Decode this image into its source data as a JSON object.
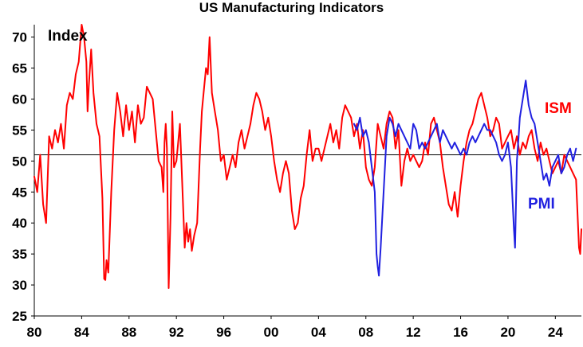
{
  "chart_data": {
    "type": "line",
    "title": "US Manufacturing Indicators",
    "ylabel": "Index",
    "xlabel": "",
    "ylim": [
      25,
      72
    ],
    "yticks": [
      25,
      30,
      35,
      40,
      45,
      50,
      55,
      60,
      65,
      70
    ],
    "xlim": [
      1980,
      2026.2
    ],
    "xticks": [
      {
        "x": 1980,
        "label": "80"
      },
      {
        "x": 1984,
        "label": "84"
      },
      {
        "x": 1988,
        "label": "88"
      },
      {
        "x": 1992,
        "label": "92"
      },
      {
        "x": 1996,
        "label": "96"
      },
      {
        "x": 2000,
        "label": "00"
      },
      {
        "x": 2004,
        "label": "04"
      },
      {
        "x": 2008,
        "label": "08"
      },
      {
        "x": 2012,
        "label": "12"
      },
      {
        "x": 2016,
        "label": "16"
      },
      {
        "x": 2020,
        "label": "20"
      },
      {
        "x": 2024,
        "label": "24"
      }
    ],
    "reference_line": 51,
    "grid": false,
    "series": [
      {
        "name": "ISM",
        "color": "#ff0000",
        "points": [
          [
            1980.0,
            47.5
          ],
          [
            1980.25,
            45
          ],
          [
            1980.5,
            51
          ],
          [
            1980.75,
            43
          ],
          [
            1981.0,
            40
          ],
          [
            1981.25,
            54
          ],
          [
            1981.5,
            52
          ],
          [
            1981.75,
            55
          ],
          [
            1982.0,
            53
          ],
          [
            1982.25,
            56
          ],
          [
            1982.5,
            52
          ],
          [
            1982.75,
            59
          ],
          [
            1983.0,
            61
          ],
          [
            1983.25,
            60
          ],
          [
            1983.5,
            64
          ],
          [
            1983.75,
            66
          ],
          [
            1984.0,
            72
          ],
          [
            1984.2,
            70
          ],
          [
            1984.4,
            66
          ],
          [
            1984.5,
            58
          ],
          [
            1984.6,
            62
          ],
          [
            1984.8,
            68
          ],
          [
            1985.0,
            61
          ],
          [
            1985.25,
            56
          ],
          [
            1985.5,
            54
          ],
          [
            1985.75,
            44
          ],
          [
            1985.9,
            31
          ],
          [
            1986.0,
            30.8
          ],
          [
            1986.1,
            34
          ],
          [
            1986.25,
            32
          ],
          [
            1986.5,
            45
          ],
          [
            1986.75,
            55
          ],
          [
            1987.0,
            61
          ],
          [
            1987.25,
            58
          ],
          [
            1987.5,
            54
          ],
          [
            1987.75,
            59
          ],
          [
            1988.0,
            55
          ],
          [
            1988.25,
            58
          ],
          [
            1988.5,
            53
          ],
          [
            1988.75,
            59
          ],
          [
            1989.0,
            56
          ],
          [
            1989.25,
            57
          ],
          [
            1989.5,
            62
          ],
          [
            1989.75,
            61
          ],
          [
            1990.0,
            60
          ],
          [
            1990.25,
            55
          ],
          [
            1990.5,
            50
          ],
          [
            1990.75,
            49
          ],
          [
            1990.9,
            45
          ],
          [
            1991.0,
            53
          ],
          [
            1991.1,
            56
          ],
          [
            1991.2,
            52
          ],
          [
            1991.35,
            29.5
          ],
          [
            1991.5,
            41
          ],
          [
            1991.65,
            58
          ],
          [
            1991.8,
            49
          ],
          [
            1992.0,
            50
          ],
          [
            1992.15,
            53
          ],
          [
            1992.3,
            56
          ],
          [
            1992.5,
            46
          ],
          [
            1992.7,
            36
          ],
          [
            1992.85,
            40
          ],
          [
            1993.0,
            37
          ],
          [
            1993.15,
            39
          ],
          [
            1993.3,
            35.5
          ],
          [
            1993.5,
            38
          ],
          [
            1993.75,
            40
          ],
          [
            1994.0,
            52
          ],
          [
            1994.15,
            58
          ],
          [
            1994.3,
            61
          ],
          [
            1994.5,
            65
          ],
          [
            1994.65,
            64
          ],
          [
            1994.8,
            70
          ],
          [
            1995.0,
            61
          ],
          [
            1995.25,
            58
          ],
          [
            1995.5,
            55
          ],
          [
            1995.75,
            50
          ],
          [
            1996.0,
            51
          ],
          [
            1996.25,
            47
          ],
          [
            1996.5,
            49
          ],
          [
            1996.75,
            51
          ],
          [
            1997.0,
            49
          ],
          [
            1997.25,
            53
          ],
          [
            1997.5,
            55
          ],
          [
            1997.75,
            52
          ],
          [
            1998.0,
            54
          ],
          [
            1998.25,
            56
          ],
          [
            1998.5,
            59
          ],
          [
            1998.75,
            61
          ],
          [
            1999.0,
            60
          ],
          [
            1999.25,
            58
          ],
          [
            1999.5,
            55
          ],
          [
            1999.75,
            57
          ],
          [
            2000.0,
            54
          ],
          [
            2000.25,
            50
          ],
          [
            2000.5,
            47
          ],
          [
            2000.75,
            45
          ],
          [
            2001.0,
            48
          ],
          [
            2001.25,
            50
          ],
          [
            2001.5,
            48
          ],
          [
            2001.75,
            42
          ],
          [
            2002.0,
            39
          ],
          [
            2002.25,
            40
          ],
          [
            2002.5,
            44
          ],
          [
            2002.75,
            46
          ],
          [
            2003.0,
            51
          ],
          [
            2003.25,
            55
          ],
          [
            2003.5,
            50
          ],
          [
            2003.75,
            52
          ],
          [
            2004.0,
            52
          ],
          [
            2004.25,
            50
          ],
          [
            2004.5,
            52
          ],
          [
            2004.75,
            54
          ],
          [
            2005.0,
            56
          ],
          [
            2005.25,
            53
          ],
          [
            2005.5,
            55
          ],
          [
            2005.75,
            52
          ],
          [
            2006.0,
            57
          ],
          [
            2006.25,
            59
          ],
          [
            2006.5,
            58
          ],
          [
            2006.75,
            57
          ],
          [
            2007.0,
            54
          ],
          [
            2007.25,
            56
          ],
          [
            2007.5,
            52
          ],
          [
            2007.75,
            55
          ],
          [
            2008.0,
            49
          ],
          [
            2008.25,
            47
          ],
          [
            2008.5,
            46
          ],
          [
            2008.75,
            49
          ],
          [
            2009.0,
            56
          ],
          [
            2009.25,
            54
          ],
          [
            2009.5,
            52
          ],
          [
            2009.75,
            56
          ],
          [
            2010.0,
            58
          ],
          [
            2010.25,
            57
          ],
          [
            2010.5,
            52
          ],
          [
            2010.75,
            55
          ],
          [
            2011.0,
            46
          ],
          [
            2011.25,
            50
          ],
          [
            2011.5,
            52
          ],
          [
            2011.75,
            50
          ],
          [
            2012.0,
            51
          ],
          [
            2012.25,
            50
          ],
          [
            2012.5,
            49
          ],
          [
            2012.75,
            50
          ],
          [
            2013.0,
            53
          ],
          [
            2013.25,
            51
          ],
          [
            2013.5,
            56
          ],
          [
            2013.75,
            57
          ],
          [
            2014.0,
            55
          ],
          [
            2014.25,
            53
          ],
          [
            2014.5,
            49
          ],
          [
            2014.75,
            46
          ],
          [
            2015.0,
            43
          ],
          [
            2015.25,
            42
          ],
          [
            2015.5,
            45
          ],
          [
            2015.75,
            41
          ],
          [
            2016.0,
            46
          ],
          [
            2016.25,
            50
          ],
          [
            2016.5,
            53
          ],
          [
            2016.75,
            55
          ],
          [
            2017.0,
            56
          ],
          [
            2017.25,
            58
          ],
          [
            2017.5,
            60
          ],
          [
            2017.75,
            61
          ],
          [
            2018.0,
            59
          ],
          [
            2018.25,
            57
          ],
          [
            2018.5,
            54
          ],
          [
            2018.75,
            55
          ],
          [
            2019.0,
            57
          ],
          [
            2019.25,
            56
          ],
          [
            2019.5,
            52
          ],
          [
            2019.75,
            53
          ],
          [
            2020.0,
            54
          ],
          [
            2020.25,
            55
          ],
          [
            2020.5,
            52
          ],
          [
            2020.75,
            54
          ],
          [
            2021.0,
            51
          ],
          [
            2021.25,
            53
          ],
          [
            2021.5,
            52
          ],
          [
            2021.75,
            54
          ],
          [
            2022.0,
            55
          ],
          [
            2022.25,
            52
          ],
          [
            2022.5,
            50
          ],
          [
            2022.75,
            53
          ],
          [
            2023.0,
            51
          ],
          [
            2023.25,
            52
          ],
          [
            2023.5,
            50
          ],
          [
            2023.75,
            48
          ],
          [
            2024.0,
            49
          ],
          [
            2024.25,
            50
          ],
          [
            2024.5,
            48
          ],
          [
            2024.75,
            51
          ],
          [
            2025.0,
            50
          ],
          [
            2025.25,
            49
          ],
          [
            2025.5,
            48
          ],
          [
            2025.75,
            47
          ],
          [
            2026.0,
            36
          ],
          [
            2026.1,
            35
          ],
          [
            2026.2,
            39
          ]
        ]
      },
      {
        "name": "PMI",
        "color": "#2020e0",
        "points": [
          [
            2007.0,
            56
          ],
          [
            2007.25,
            55
          ],
          [
            2007.5,
            57
          ],
          [
            2007.75,
            54
          ],
          [
            2008.0,
            55
          ],
          [
            2008.25,
            53
          ],
          [
            2008.5,
            49
          ],
          [
            2008.75,
            45
          ],
          [
            2008.9,
            35
          ],
          [
            2009.0,
            33
          ],
          [
            2009.1,
            31.5
          ],
          [
            2009.25,
            36
          ],
          [
            2009.5,
            45
          ],
          [
            2009.75,
            54
          ],
          [
            2010.0,
            57
          ],
          [
            2010.25,
            56
          ],
          [
            2010.5,
            54
          ],
          [
            2010.75,
            56
          ],
          [
            2011.0,
            55
          ],
          [
            2011.25,
            54
          ],
          [
            2011.5,
            53
          ],
          [
            2011.75,
            52
          ],
          [
            2012.0,
            56
          ],
          [
            2012.25,
            55
          ],
          [
            2012.5,
            52
          ],
          [
            2012.75,
            53
          ],
          [
            2013.0,
            52
          ],
          [
            2013.25,
            53
          ],
          [
            2013.5,
            54
          ],
          [
            2013.75,
            55
          ],
          [
            2014.0,
            56
          ],
          [
            2014.25,
            53
          ],
          [
            2014.5,
            55
          ],
          [
            2014.75,
            54
          ],
          [
            2015.0,
            53
          ],
          [
            2015.25,
            52
          ],
          [
            2015.5,
            53
          ],
          [
            2015.75,
            52
          ],
          [
            2016.0,
            51
          ],
          [
            2016.25,
            52
          ],
          [
            2016.5,
            51
          ],
          [
            2016.75,
            53
          ],
          [
            2017.0,
            54
          ],
          [
            2017.25,
            53
          ],
          [
            2017.5,
            54
          ],
          [
            2017.75,
            55
          ],
          [
            2018.0,
            56
          ],
          [
            2018.25,
            55
          ],
          [
            2018.5,
            55
          ],
          [
            2018.75,
            54
          ],
          [
            2019.0,
            53
          ],
          [
            2019.25,
            51
          ],
          [
            2019.5,
            50
          ],
          [
            2019.75,
            51
          ],
          [
            2020.0,
            53
          ],
          [
            2020.25,
            49
          ],
          [
            2020.5,
            39
          ],
          [
            2020.6,
            36
          ],
          [
            2020.75,
            50
          ],
          [
            2020.9,
            54
          ],
          [
            2021.0,
            57
          ],
          [
            2021.25,
            60
          ],
          [
            2021.5,
            63
          ],
          [
            2021.75,
            59
          ],
          [
            2022.0,
            57
          ],
          [
            2022.25,
            56
          ],
          [
            2022.5,
            53
          ],
          [
            2022.75,
            50
          ],
          [
            2023.0,
            47
          ],
          [
            2023.25,
            48
          ],
          [
            2023.5,
            46
          ],
          [
            2023.75,
            49
          ],
          [
            2024.0,
            50
          ],
          [
            2024.25,
            51
          ],
          [
            2024.5,
            48
          ],
          [
            2024.75,
            49
          ],
          [
            2025.0,
            51
          ],
          [
            2025.25,
            52
          ],
          [
            2025.5,
            50
          ],
          [
            2025.75,
            52
          ]
        ]
      }
    ],
    "annotations": [
      {
        "text": "ISM",
        "color": "#ff0000"
      },
      {
        "text": "PMI",
        "color": "#2020e0"
      }
    ]
  }
}
